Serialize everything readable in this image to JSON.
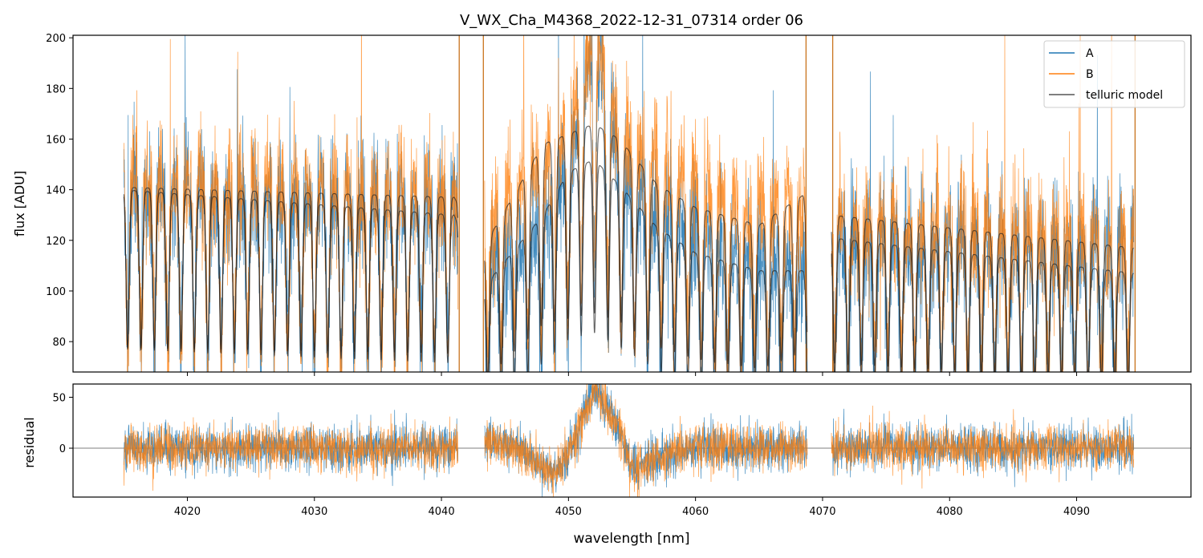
{
  "chart_data": [
    {
      "type": "line",
      "panel": "flux",
      "title": "V_WX_Cha_M4368_2022-12-31_07314  order 06",
      "xlabel": "",
      "ylabel": "flux [ADU]",
      "xlim": [
        4011,
        4099
      ],
      "ylim": [
        68,
        201
      ],
      "yticks": [
        80,
        100,
        120,
        140,
        160,
        180,
        200
      ],
      "xticks": [
        4020,
        4030,
        4040,
        4050,
        4060,
        4070,
        4080,
        4090
      ],
      "legend_position": "top-right",
      "segments": [
        [
          4015.0,
          4041.3
        ],
        [
          4043.4,
          4068.8
        ],
        [
          4070.7,
          4094.5
        ]
      ],
      "series": [
        {
          "name": "A",
          "color": "#1f77b4",
          "kind": "noisy spectrum",
          "continuum_points": [
            [
              4015,
              140
            ],
            [
              4041,
              136
            ],
            [
              4043.4,
              108
            ],
            [
              4048,
              125
            ],
            [
              4050,
              150
            ],
            [
              4052,
              205
            ],
            [
              4054,
              150
            ],
            [
              4057,
              128
            ],
            [
              4060,
              125
            ],
            [
              4065,
              112
            ],
            [
              4068.8,
              112
            ],
            [
              4070.7,
              120
            ],
            [
              4094.5,
              118
            ]
          ],
          "noise_sigma": 13
        },
        {
          "name": "B",
          "color": "#ff7f0e",
          "kind": "noisy spectrum",
          "continuum_points": [
            [
              4015,
              143
            ],
            [
              4041,
              138
            ],
            [
              4043.4,
              125
            ],
            [
              4048,
              150
            ],
            [
              4050,
              160
            ],
            [
              4052,
              205
            ],
            [
              4054,
              160
            ],
            [
              4057,
              150
            ],
            [
              4060,
              142
            ],
            [
              4065,
              132
            ],
            [
              4068.8,
              138
            ],
            [
              4070.7,
              128
            ],
            [
              4094.5,
              120
            ]
          ],
          "noise_sigma": 13
        },
        {
          "name": "telluric model",
          "color": "#555555",
          "kind": "model",
          "models": [
            {
              "continuum_points": [
                [
                  4015,
                  141
                ],
                [
                  4041,
                  137
                ],
                [
                  4043.4,
                  118
                ],
                [
                  4048,
                  158
                ],
                [
                  4050,
                  162
                ],
                [
                  4052,
                  166
                ],
                [
                  4054,
                  160
                ],
                [
                  4057,
                  142
                ],
                [
                  4060,
                  133
                ],
                [
                  4065,
                  126
                ],
                [
                  4068.8,
                  139
                ],
                [
                  4070.7,
                  130
                ],
                [
                  4094.5,
                  117
                ]
              ]
            },
            {
              "continuum_points": [
                [
                  4015,
                  140
                ],
                [
                  4041,
                  130
                ],
                [
                  4043.4,
                  102
                ],
                [
                  4048,
                  130
                ],
                [
                  4050,
                  147
                ],
                [
                  4052,
                  152
                ],
                [
                  4054,
                  142
                ],
                [
                  4057,
                  125
                ],
                [
                  4060,
                  115
                ],
                [
                  4065,
                  108
                ],
                [
                  4068.8,
                  108
                ],
                [
                  4070.7,
                  121
                ],
                [
                  4094.5,
                  107
                ]
              ]
            }
          ],
          "absorption_line_spacing_nm": 1.05,
          "absorption_depth": 0.45
        }
      ]
    },
    {
      "type": "line",
      "panel": "residual",
      "xlabel": "wavelength [nm]",
      "ylabel": "residual",
      "xlim": [
        4011,
        4099
      ],
      "ylim": [
        -48,
        63
      ],
      "yticks": [
        0,
        50
      ],
      "xticks": [
        4020,
        4030,
        4040,
        4050,
        4060,
        4070,
        4080,
        4090
      ],
      "zero_line": true,
      "segments": [
        [
          4015.0,
          4041.3
        ],
        [
          4043.4,
          4068.8
        ],
        [
          4070.7,
          4094.5
        ]
      ],
      "series": [
        {
          "name": "A",
          "color": "#1f77b4",
          "trend_points": [
            [
              4015,
              0
            ],
            [
              4041,
              0
            ],
            [
              4043.4,
              10
            ],
            [
              4046,
              0
            ],
            [
              4049,
              -25
            ],
            [
              4050,
              -5
            ],
            [
              4052,
              60
            ],
            [
              4054,
              20
            ],
            [
              4055,
              -20
            ],
            [
              4057,
              -10
            ],
            [
              4060,
              0
            ],
            [
              4068.8,
              0
            ],
            [
              4070.7,
              0
            ],
            [
              4094.5,
              0
            ]
          ],
          "noise_sigma": 11
        },
        {
          "name": "B",
          "color": "#ff7f0e",
          "trend_points": [
            [
              4015,
              0
            ],
            [
              4041,
              0
            ],
            [
              4043.4,
              10
            ],
            [
              4046,
              0
            ],
            [
              4049,
              -25
            ],
            [
              4050,
              -5
            ],
            [
              4052,
              60
            ],
            [
              4054,
              20
            ],
            [
              4055,
              -20
            ],
            [
              4057,
              -10
            ],
            [
              4060,
              0
            ],
            [
              4068.8,
              0
            ],
            [
              4070.7,
              0
            ],
            [
              4094.5,
              0
            ]
          ],
          "noise_sigma": 11
        }
      ]
    }
  ]
}
